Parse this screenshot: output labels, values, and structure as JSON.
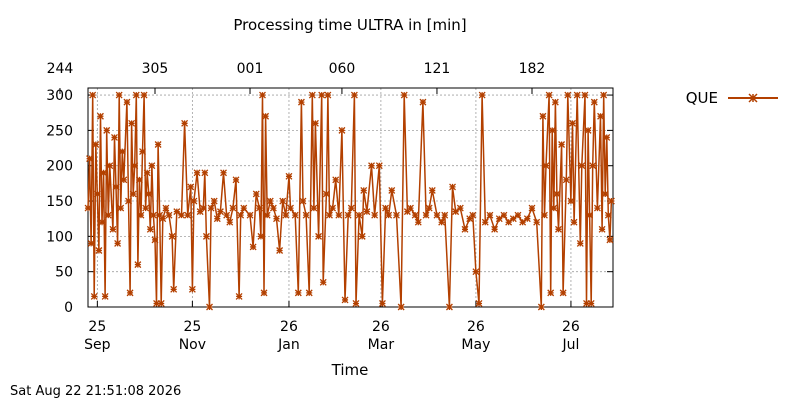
{
  "chart_data": {
    "type": "line",
    "title": "Processing time ULTRA in [min]",
    "xlabel": "Time",
    "ylabel": "",
    "ylim": [
      0,
      310
    ],
    "yticks": [
      0,
      50,
      100,
      150,
      200,
      250,
      300
    ],
    "xlim": [
      "2025-09-19",
      "2026-08-22"
    ],
    "xticks_bottom": [
      {
        "date": "2025-09-25",
        "day": "25",
        "month": "Sep"
      },
      {
        "date": "2025-11-25",
        "day": "25",
        "month": "Nov"
      },
      {
        "date": "2026-01-26",
        "day": "26",
        "month": "Jan"
      },
      {
        "date": "2026-03-26",
        "day": "26",
        "month": "Mar"
      },
      {
        "date": "2026-05-26",
        "day": "26",
        "month": "May"
      },
      {
        "date": "2026-07-26",
        "day": "26",
        "month": "Jul"
      }
    ],
    "xticks_top": [
      {
        "date": "2025-09-01",
        "label": "244"
      },
      {
        "date": "2025-11-01",
        "label": "305"
      },
      {
        "date": "2026-01-01",
        "label": "001"
      },
      {
        "date": "2026-03-01",
        "label": "060"
      },
      {
        "date": "2026-05-01",
        "label": "121"
      },
      {
        "date": "2026-07-01",
        "label": "182"
      }
    ],
    "grid": true,
    "legend": "top-right",
    "series": [
      {
        "name": "QUE",
        "color": "#b34000",
        "marker": "x",
        "points": [
          [
            "2025-09-19",
            140
          ],
          [
            "2025-09-20",
            210
          ],
          [
            "2025-09-21",
            90
          ],
          [
            "2025-09-22",
            300
          ],
          [
            "2025-09-23",
            15
          ],
          [
            "2025-09-24",
            230
          ],
          [
            "2025-09-25",
            160
          ],
          [
            "2025-09-26",
            80
          ],
          [
            "2025-09-27",
            270
          ],
          [
            "2025-09-28",
            120
          ],
          [
            "2025-09-29",
            190
          ],
          [
            "2025-09-30",
            15
          ],
          [
            "2025-10-01",
            250
          ],
          [
            "2025-10-02",
            130
          ],
          [
            "2025-10-03",
            200
          ],
          [
            "2025-10-05",
            110
          ],
          [
            "2025-10-06",
            240
          ],
          [
            "2025-10-07",
            170
          ],
          [
            "2025-10-08",
            90
          ],
          [
            "2025-10-09",
            300
          ],
          [
            "2025-10-10",
            140
          ],
          [
            "2025-10-11",
            220
          ],
          [
            "2025-10-12",
            180
          ],
          [
            "2025-10-14",
            290
          ],
          [
            "2025-10-15",
            150
          ],
          [
            "2025-10-16",
            20
          ],
          [
            "2025-10-17",
            260
          ],
          [
            "2025-10-18",
            160
          ],
          [
            "2025-10-19",
            200
          ],
          [
            "2025-10-20",
            300
          ],
          [
            "2025-10-21",
            60
          ],
          [
            "2025-10-22",
            180
          ],
          [
            "2025-10-23",
            130
          ],
          [
            "2025-10-24",
            220
          ],
          [
            "2025-10-25",
            300
          ],
          [
            "2025-10-26",
            140
          ],
          [
            "2025-10-27",
            190
          ],
          [
            "2025-10-28",
            160
          ],
          [
            "2025-10-29",
            110
          ],
          [
            "2025-10-30",
            200
          ],
          [
            "2025-10-31",
            130
          ],
          [
            "2025-11-01",
            95
          ],
          [
            "2025-11-02",
            5
          ],
          [
            "2025-11-03",
            230
          ],
          [
            "2025-11-04",
            130
          ],
          [
            "2025-11-05",
            5
          ],
          [
            "2025-11-06",
            125
          ],
          [
            "2025-11-08",
            140
          ],
          [
            "2025-11-10",
            130
          ],
          [
            "2025-11-12",
            100
          ],
          [
            "2025-11-13",
            25
          ],
          [
            "2025-11-15",
            135
          ],
          [
            "2025-11-18",
            130
          ],
          [
            "2025-11-20",
            260
          ],
          [
            "2025-11-22",
            130
          ],
          [
            "2025-11-24",
            170
          ],
          [
            "2025-11-25",
            25
          ],
          [
            "2025-11-26",
            150
          ],
          [
            "2025-11-28",
            190
          ],
          [
            "2025-11-30",
            135
          ],
          [
            "2025-12-02",
            140
          ],
          [
            "2025-12-03",
            190
          ],
          [
            "2025-12-04",
            100
          ],
          [
            "2025-12-06",
            0
          ],
          [
            "2025-12-07",
            140
          ],
          [
            "2025-12-09",
            150
          ],
          [
            "2025-12-11",
            125
          ],
          [
            "2025-12-13",
            135
          ],
          [
            "2025-12-15",
            190
          ],
          [
            "2025-12-17",
            130
          ],
          [
            "2025-12-19",
            120
          ],
          [
            "2025-12-21",
            140
          ],
          [
            "2025-12-23",
            180
          ],
          [
            "2025-12-25",
            15
          ],
          [
            "2025-12-26",
            130
          ],
          [
            "2025-12-28",
            140
          ],
          [
            "2026-01-01",
            130
          ],
          [
            "2026-01-03",
            85
          ],
          [
            "2026-01-05",
            160
          ],
          [
            "2026-01-07",
            140
          ],
          [
            "2026-01-08",
            100
          ],
          [
            "2026-01-09",
            300
          ],
          [
            "2026-01-10",
            20
          ],
          [
            "2026-01-11",
            270
          ],
          [
            "2026-01-12",
            130
          ],
          [
            "2026-01-14",
            150
          ],
          [
            "2026-01-16",
            140
          ],
          [
            "2026-01-18",
            125
          ],
          [
            "2026-01-20",
            80
          ],
          [
            "2026-01-22",
            150
          ],
          [
            "2026-01-24",
            130
          ],
          [
            "2026-01-26",
            185
          ],
          [
            "2026-01-27",
            140
          ],
          [
            "2026-01-30",
            130
          ],
          [
            "2026-02-01",
            20
          ],
          [
            "2026-02-03",
            290
          ],
          [
            "2026-02-04",
            150
          ],
          [
            "2026-02-06",
            130
          ],
          [
            "2026-02-08",
            20
          ],
          [
            "2026-02-10",
            300
          ],
          [
            "2026-02-11",
            140
          ],
          [
            "2026-02-12",
            260
          ],
          [
            "2026-02-14",
            100
          ],
          [
            "2026-02-16",
            300
          ],
          [
            "2026-02-17",
            35
          ],
          [
            "2026-02-19",
            160
          ],
          [
            "2026-02-20",
            300
          ],
          [
            "2026-02-21",
            130
          ],
          [
            "2026-02-23",
            140
          ],
          [
            "2026-02-25",
            180
          ],
          [
            "2026-02-27",
            130
          ],
          [
            "2026-03-01",
            250
          ],
          [
            "2026-03-03",
            10
          ],
          [
            "2026-03-05",
            130
          ],
          [
            "2026-03-07",
            140
          ],
          [
            "2026-03-09",
            300
          ],
          [
            "2026-03-10",
            5
          ],
          [
            "2026-03-12",
            130
          ],
          [
            "2026-03-14",
            100
          ],
          [
            "2026-03-15",
            165
          ],
          [
            "2026-03-17",
            135
          ],
          [
            "2026-03-20",
            200
          ],
          [
            "2026-03-22",
            130
          ],
          [
            "2026-03-25",
            200
          ],
          [
            "2026-03-27",
            5
          ],
          [
            "2026-03-29",
            140
          ],
          [
            "2026-03-31",
            130
          ],
          [
            "2026-04-02",
            165
          ],
          [
            "2026-04-05",
            130
          ],
          [
            "2026-04-08",
            0
          ],
          [
            "2026-04-10",
            300
          ],
          [
            "2026-04-12",
            135
          ],
          [
            "2026-04-14",
            140
          ],
          [
            "2026-04-17",
            130
          ],
          [
            "2026-04-19",
            120
          ],
          [
            "2026-04-22",
            290
          ],
          [
            "2026-04-24",
            130
          ],
          [
            "2026-04-26",
            140
          ],
          [
            "2026-04-28",
            165
          ],
          [
            "2026-05-01",
            130
          ],
          [
            "2026-05-04",
            120
          ],
          [
            "2026-05-06",
            130
          ],
          [
            "2026-05-09",
            0
          ],
          [
            "2026-05-11",
            170
          ],
          [
            "2026-05-13",
            135
          ],
          [
            "2026-05-16",
            140
          ],
          [
            "2026-05-19",
            110
          ],
          [
            "2026-05-22",
            125
          ],
          [
            "2026-05-24",
            130
          ],
          [
            "2026-05-26",
            50
          ],
          [
            "2026-05-28",
            5
          ],
          [
            "2026-05-30",
            300
          ],
          [
            "2026-06-01",
            120
          ],
          [
            "2026-06-04",
            130
          ],
          [
            "2026-06-07",
            110
          ],
          [
            "2026-06-10",
            125
          ],
          [
            "2026-06-13",
            130
          ],
          [
            "2026-06-16",
            120
          ],
          [
            "2026-06-19",
            125
          ],
          [
            "2026-06-22",
            130
          ],
          [
            "2026-06-25",
            120
          ],
          [
            "2026-06-28",
            125
          ],
          [
            "2026-07-01",
            140
          ],
          [
            "2026-07-04",
            120
          ],
          [
            "2026-07-07",
            0
          ],
          [
            "2026-07-08",
            270
          ],
          [
            "2026-07-09",
            130
          ],
          [
            "2026-07-10",
            200
          ],
          [
            "2026-07-12",
            300
          ],
          [
            "2026-07-13",
            20
          ],
          [
            "2026-07-14",
            250
          ],
          [
            "2026-07-15",
            140
          ],
          [
            "2026-07-16",
            290
          ],
          [
            "2026-07-17",
            160
          ],
          [
            "2026-07-18",
            110
          ],
          [
            "2026-07-20",
            230
          ],
          [
            "2026-07-21",
            20
          ],
          [
            "2026-07-23",
            180
          ],
          [
            "2026-07-24",
            300
          ],
          [
            "2026-07-26",
            150
          ],
          [
            "2026-07-27",
            260
          ],
          [
            "2026-07-28",
            120
          ],
          [
            "2026-07-30",
            300
          ],
          [
            "2026-08-01",
            90
          ],
          [
            "2026-08-02",
            200
          ],
          [
            "2026-08-04",
            300
          ],
          [
            "2026-08-05",
            5
          ],
          [
            "2026-08-06",
            250
          ],
          [
            "2026-08-07",
            130
          ],
          [
            "2026-08-08",
            5
          ],
          [
            "2026-08-09",
            200
          ],
          [
            "2026-08-10",
            290
          ],
          [
            "2026-08-12",
            140
          ],
          [
            "2026-08-14",
            270
          ],
          [
            "2026-08-15",
            110
          ],
          [
            "2026-08-16",
            300
          ],
          [
            "2026-08-17",
            160
          ],
          [
            "2026-08-18",
            240
          ],
          [
            "2026-08-19",
            130
          ],
          [
            "2026-08-20",
            95
          ],
          [
            "2026-08-21",
            150
          ]
        ]
      }
    ]
  },
  "footer": {
    "timestamp": "Sat Aug 22 21:51:08 2026"
  }
}
